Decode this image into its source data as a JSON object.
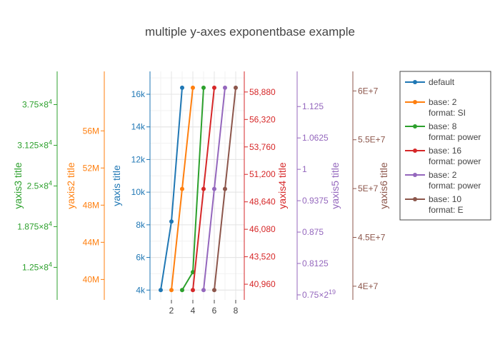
{
  "chart_data": {
    "type": "line",
    "title": "multiple y-axes exponentbase example",
    "grid": true,
    "legend_position": "top-right",
    "xaxis": {
      "range": [
        0,
        8.8
      ],
      "ticks": [
        {
          "v": 2,
          "label": "2"
        },
        {
          "v": 4,
          "label": "4"
        },
        {
          "v": 6,
          "label": "6"
        },
        {
          "v": 8,
          "label": "8"
        }
      ]
    },
    "axes": [
      {
        "id": "y",
        "title": "yaxis title",
        "color": "#1f77b4",
        "side": "left",
        "range": [
          3400,
          17400
        ],
        "ticks": [
          {
            "v": 4000,
            "label": "4k"
          },
          {
            "v": 6000,
            "label": "6k"
          },
          {
            "v": 8000,
            "label": "8k"
          },
          {
            "v": 10000,
            "label": "10k"
          },
          {
            "v": 12000,
            "label": "12k"
          },
          {
            "v": 14000,
            "label": "14k"
          },
          {
            "v": 16000,
            "label": "16k"
          }
        ]
      },
      {
        "id": "y2",
        "title": "yaxis2 title",
        "color": "#ff7f0e",
        "side": "left",
        "range": [
          37800000,
          62400000
        ],
        "ticks": [
          {
            "v": 40000000,
            "label": "40M"
          },
          {
            "v": 44000000,
            "label": "44M"
          },
          {
            "v": 48000000,
            "label": "48M"
          },
          {
            "v": 52000000,
            "label": "52M"
          },
          {
            "v": 56000000,
            "label": "56M"
          }
        ]
      },
      {
        "id": "y3",
        "title": "yaxis3 title",
        "color": "#2ca02c",
        "side": "left",
        "range": [
          0.75,
          4.26
        ],
        "ticks": [
          {
            "v": 1.25,
            "label": "1.25×8",
            "sup": "4"
          },
          {
            "v": 1.875,
            "label": "1.875×8",
            "sup": "4"
          },
          {
            "v": 2.5,
            "label": "2.5×8",
            "sup": "4"
          },
          {
            "v": 3.125,
            "label": "3.125×8",
            "sup": "4"
          },
          {
            "v": 3.75,
            "label": "3.75×8",
            "sup": "4"
          }
        ]
      },
      {
        "id": "y4",
        "title": "yaxis4 title",
        "color": "#d62728",
        "side": "right",
        "range": [
          39500,
          60800
        ],
        "ticks": [
          {
            "v": 40960,
            "label": "40,960"
          },
          {
            "v": 43520,
            "label": "43,520"
          },
          {
            "v": 46080,
            "label": "46,080"
          },
          {
            "v": 48640,
            "label": "48,640"
          },
          {
            "v": 51200,
            "label": "51,200"
          },
          {
            "v": 53760,
            "label": "53,760"
          },
          {
            "v": 56320,
            "label": "56,320"
          },
          {
            "v": 58880,
            "label": "58,880"
          }
        ]
      },
      {
        "id": "y5",
        "title": "yaxis5 title",
        "color": "#9467bd",
        "side": "right",
        "range": [
          0.74,
          1.195
        ],
        "ticks": [
          {
            "v": 0.75,
            "label": "0.75×2",
            "sup": "19"
          },
          {
            "v": 0.8125,
            "label": "0.8125"
          },
          {
            "v": 0.875,
            "label": "0.875"
          },
          {
            "v": 0.9375,
            "label": "0.9375"
          },
          {
            "v": 1.0,
            "label": "1"
          },
          {
            "v": 1.0625,
            "label": "1.0625"
          },
          {
            "v": 1.125,
            "label": "1.125"
          }
        ]
      },
      {
        "id": "y6",
        "title": "yaxis6 title",
        "color": "#8c564b",
        "side": "right",
        "range": [
          38600000,
          62000000
        ],
        "ticks": [
          {
            "v": 40000000,
            "label": "4E+7"
          },
          {
            "v": 45000000,
            "label": "4.5E+7"
          },
          {
            "v": 50000000,
            "label": "5E+7"
          },
          {
            "v": 55000000,
            "label": "5.5E+7"
          },
          {
            "v": 60000000,
            "label": "6E+7"
          }
        ]
      }
    ],
    "series": [
      {
        "name": "default",
        "axis": "y",
        "color": "#1f77b4",
        "x": [
          1,
          2,
          3
        ],
        "y": [
          4000,
          8200,
          16400
        ]
      },
      {
        "name": "base: 2\nformat: SI",
        "axis": "y",
        "color": "#ff7f0e",
        "x": [
          2,
          3,
          4
        ],
        "y": [
          4000,
          10200,
          16400
        ]
      },
      {
        "name": "base: 8\nformat: power",
        "axis": "y",
        "color": "#2ca02c",
        "x": [
          3,
          4,
          5
        ],
        "y": [
          4000,
          5100,
          16400
        ]
      },
      {
        "name": "base: 16\nformat: power",
        "axis": "y",
        "color": "#d62728",
        "x": [
          4,
          5,
          6
        ],
        "y": [
          4000,
          10200,
          16400
        ]
      },
      {
        "name": "base: 2\nformat: power",
        "axis": "y",
        "color": "#9467bd",
        "x": [
          5,
          6,
          7
        ],
        "y": [
          4000,
          10200,
          16400
        ]
      },
      {
        "name": "base: 10\nformat: E",
        "axis": "y",
        "color": "#8c564b",
        "x": [
          6,
          7,
          8
        ],
        "y": [
          4000,
          10200,
          16400
        ]
      }
    ]
  }
}
